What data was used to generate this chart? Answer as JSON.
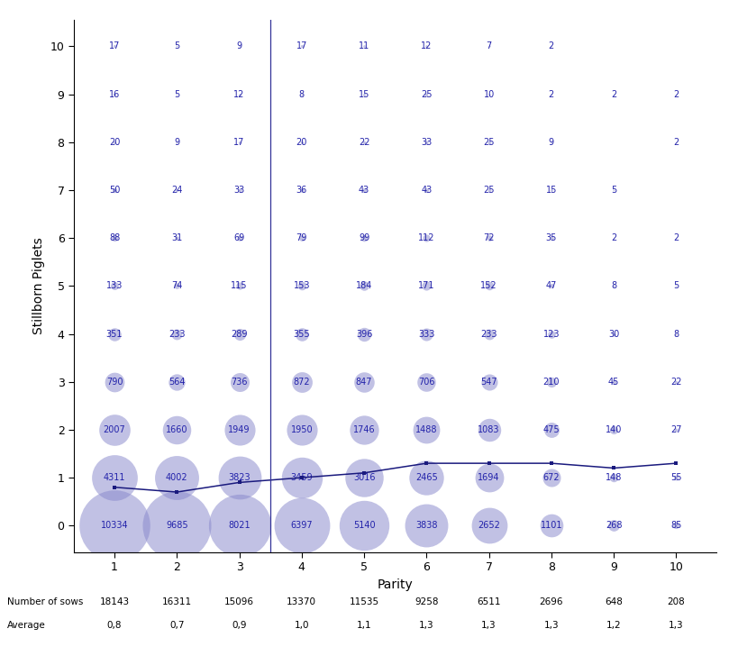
{
  "parities": [
    1,
    2,
    3,
    4,
    5,
    6,
    7,
    8,
    9,
    10
  ],
  "stillborn_levels": [
    0,
    1,
    2,
    3,
    4,
    5,
    6,
    7,
    8,
    9,
    10
  ],
  "counts": {
    "0": [
      10334,
      9685,
      8021,
      6397,
      5140,
      3838,
      2652,
      1101,
      268,
      85
    ],
    "1": [
      4311,
      4002,
      3823,
      3459,
      3016,
      2465,
      1694,
      672,
      148,
      55
    ],
    "2": [
      2007,
      1660,
      1949,
      1950,
      1746,
      1488,
      1083,
      475,
      140,
      27
    ],
    "3": [
      790,
      564,
      736,
      872,
      847,
      706,
      547,
      210,
      45,
      22
    ],
    "4": [
      351,
      233,
      289,
      355,
      396,
      333,
      233,
      123,
      30,
      8
    ],
    "5": [
      133,
      74,
      115,
      153,
      184,
      171,
      152,
      47,
      8,
      5
    ],
    "6": [
      88,
      31,
      69,
      79,
      99,
      112,
      72,
      35,
      2,
      2
    ],
    "7": [
      50,
      24,
      33,
      36,
      43,
      43,
      25,
      15,
      5,
      null
    ],
    "8": [
      20,
      9,
      17,
      20,
      22,
      33,
      25,
      9,
      null,
      2
    ],
    "9": [
      16,
      5,
      12,
      8,
      15,
      25,
      10,
      2,
      2,
      2
    ],
    "10": [
      17,
      5,
      9,
      17,
      11,
      12,
      7,
      2,
      null,
      null
    ]
  },
  "averages": [
    0.8,
    0.7,
    0.9,
    1.0,
    1.1,
    1.3,
    1.3,
    1.3,
    1.2,
    1.3
  ],
  "num_sows": [
    18143,
    16311,
    15096,
    13370,
    11535,
    9258,
    6511,
    2696,
    648,
    208
  ],
  "bubble_color": "#8888cc",
  "bubble_alpha": 0.52,
  "line_color": "#1a1a7e",
  "text_color": "#2222aa",
  "ylabel": "Stillborn Piglets",
  "xlabel": "Parity",
  "ylim": [
    -0.55,
    10.55
  ],
  "xlim": [
    0.35,
    10.65
  ],
  "vline_x": 3.5,
  "vline_color": "#333399",
  "vline_lw": 0.9,
  "max_bubble_area": 3200,
  "max_count": 10334
}
